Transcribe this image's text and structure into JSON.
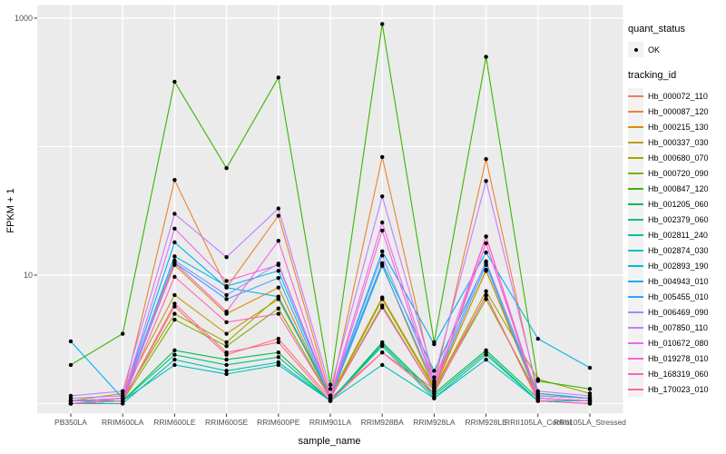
{
  "figure": {
    "x_axis_title": "sample_name",
    "y_axis_title": "FPKM + 1"
  },
  "legend": {
    "quant_status_title": "quant_status",
    "quant_status_items": [
      {
        "label": "OK",
        "symbol": "black-point"
      }
    ],
    "tracking_id_title": "tracking_id"
  },
  "chart_data": {
    "type": "line",
    "title": "",
    "xlabel": "sample_name",
    "ylabel": "FPKM + 1",
    "y_scale": "log10",
    "ylim": [
      1,
      1000
    ],
    "y_breaks": [
      10,
      1000
    ],
    "y_break_labels": [
      "10",
      "1000"
    ],
    "y_minor_breaks": [
      1,
      100
    ],
    "legend_position": "right",
    "grid": true,
    "panel_background": "#ebebeb",
    "grid_color": "#ffffff",
    "point_color": "#000000",
    "tick_color": "#333333",
    "tick_label_color": "#4d4d4d",
    "categories": [
      "PB350LA",
      "RRIM600LA",
      "RRIM600LE",
      "RRIM600SE",
      "RRIM600PE",
      "RRIM901LA",
      "RRIM928BA",
      "RRIM928LA",
      "RRIM928LE",
      "RRII105LA_Control",
      "RRII105LA_Stressed"
    ],
    "series": [
      {
        "name": "Hb_000072_110",
        "color": "#F8766D",
        "values": [
          1.05,
          1.05,
          5.7,
          2.4,
          3.2,
          1.1,
          2.5,
          1.3,
          6.9,
          1.1,
          1.05
        ]
      },
      {
        "name": "Hb_000087_120",
        "color": "#EA8331",
        "values": [
          1.05,
          1.1,
          55,
          8,
          29,
          1.15,
          83,
          1.4,
          80,
          1.15,
          1.1
        ]
      },
      {
        "name": "Hb_000215_130",
        "color": "#D89000",
        "values": [
          1.0,
          1.1,
          12,
          5,
          8,
          1.1,
          12,
          1.3,
          11,
          1.1,
          1.05
        ]
      },
      {
        "name": "Hb_000337_030",
        "color": "#C09B00",
        "values": [
          1.05,
          1.2,
          7,
          3.5,
          6.5,
          1.15,
          6.7,
          1.35,
          10.8,
          1.2,
          1.1
        ]
      },
      {
        "name": "Hb_000680_070",
        "color": "#A3A500",
        "values": [
          1.0,
          1.1,
          5,
          3,
          6.8,
          1.1,
          6.5,
          1.3,
          7.5,
          1.55,
          1.2
        ]
      },
      {
        "name": "Hb_000720_090",
        "color": "#7CAE00",
        "values": [
          1.0,
          1.05,
          4.5,
          2.8,
          5.5,
          1.1,
          5.8,
          1.25,
          6.5,
          1.15,
          1.1
        ]
      },
      {
        "name": "Hb_000847_120",
        "color": "#39B600",
        "values": [
          2.0,
          3.5,
          320,
          68,
          345,
          1.4,
          900,
          3.0,
          500,
          1.5,
          1.3
        ]
      },
      {
        "name": "Hb_001205_060",
        "color": "#00BB4E",
        "values": [
          1.0,
          1.05,
          2.6,
          2.2,
          2.5,
          1.05,
          3.0,
          1.2,
          2.6,
          1.1,
          1.05
        ]
      },
      {
        "name": "Hb_002379_060",
        "color": "#00BF7D",
        "values": [
          1.0,
          1.05,
          2.4,
          2.0,
          2.3,
          1.05,
          2.9,
          1.15,
          2.5,
          1.05,
          1.05
        ]
      },
      {
        "name": "Hb_002811_240",
        "color": "#00C1A3",
        "values": [
          1.0,
          1.0,
          2.2,
          1.8,
          2.1,
          1.05,
          2.8,
          1.1,
          2.4,
          1.05,
          1.0
        ]
      },
      {
        "name": "Hb_002874_030",
        "color": "#00BFC4",
        "values": [
          1.05,
          1.05,
          2.0,
          1.7,
          2.0,
          1.05,
          2.0,
          1.1,
          2.2,
          1.05,
          1.05
        ]
      },
      {
        "name": "Hb_002893_190",
        "color": "#00BAE0",
        "values": [
          1.05,
          1.1,
          14,
          8.2,
          10.8,
          1.15,
          12.4,
          1.8,
          12.5,
          1.2,
          1.1
        ]
      },
      {
        "name": "Hb_004943_010",
        "color": "#00B0F6",
        "values": [
          3.05,
          1.1,
          18,
          8,
          6.8,
          1.15,
          15.3,
          2.9,
          15,
          3.2,
          1.9
        ]
      },
      {
        "name": "Hb_005455_010",
        "color": "#35A2FF",
        "values": [
          1.0,
          1.05,
          12.5,
          6.5,
          9.5,
          1.1,
          11.8,
          1.4,
          12,
          1.1,
          1.05
        ]
      },
      {
        "name": "Hb_006469_090",
        "color": "#9590FF",
        "values": [
          1.1,
          1.15,
          13,
          7,
          12.3,
          1.15,
          14.2,
          1.5,
          12.8,
          1.15,
          1.1
        ]
      },
      {
        "name": "Hb_007850_110",
        "color": "#C77CFF",
        "values": [
          1.15,
          1.25,
          30,
          13.8,
          33,
          1.3,
          41,
          1.6,
          54,
          1.25,
          1.15
        ]
      },
      {
        "name": "Hb_010672_080",
        "color": "#E76BF3",
        "values": [
          1.05,
          1.1,
          23,
          9,
          12,
          1.15,
          25.7,
          1.45,
          20,
          1.1,
          1.05
        ]
      },
      {
        "name": "Hb_019278_010",
        "color": "#FA62DB",
        "values": [
          1.0,
          1.1,
          12.5,
          5.2,
          18.5,
          1.1,
          22.2,
          1.35,
          17.7,
          1.1,
          1.05
        ]
      },
      {
        "name": "Hb_168319_060",
        "color": "#FF62BC",
        "values": [
          1.0,
          1.05,
          9.7,
          4.3,
          5.0,
          1.1,
          5.6,
          1.25,
          20,
          1.05,
          1.0
        ]
      },
      {
        "name": "Hb_170023_010",
        "color": "#FF6A98",
        "values": [
          1.0,
          1.05,
          6.0,
          2.5,
          3.0,
          1.05,
          2.5,
          1.2,
          7.0,
          1.05,
          1.0
        ]
      }
    ]
  }
}
